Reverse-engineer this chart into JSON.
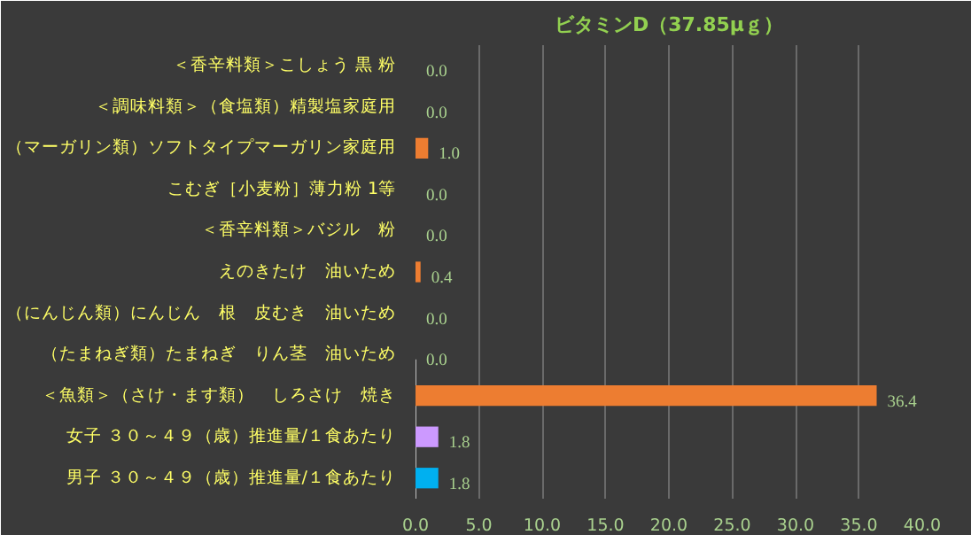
{
  "chart_data": {
    "type": "bar",
    "orientation": "horizontal",
    "title": "ビタミンD（37.85μｇ）",
    "categories": [
      "＜香辛料類＞こしょう 黒 粉",
      "＜調味料類＞（食塩類）精製塩家庭用",
      "（マーガリン類）ソフトタイプマーガリン家庭用",
      "こむぎ［小麦粉］薄力粉 1等",
      "＜香辛料類＞バジル　粉",
      "えのきたけ　油いため",
      "（にんじん類）にんじん　根　皮むき　油いため",
      "（たまねぎ類）たまねぎ　りん茎　油いため",
      "＜魚類＞（さけ・ます類）　しろさけ　焼き",
      "女子 ３０～４９（歳）推進量/１食あたり",
      "男子 ３０～４９（歳）推進量/１食あたり"
    ],
    "values": [
      0,
      0,
      1.0,
      0,
      0,
      0.4,
      0,
      0,
      36.4,
      1.8,
      1.8
    ],
    "colors": [
      "#ed7d31",
      "#ed7d31",
      "#ed7d31",
      "#ed7d31",
      "#ed7d31",
      "#ed7d31",
      "#ed7d31",
      "#ed7d31",
      "#ed7d31",
      "#cc99ff",
      "#00b0f0"
    ],
    "value_labels": [
      "0.0",
      "0.0",
      "1.0",
      "0.0",
      "0.0",
      "0.4",
      "0.0",
      "0.0",
      "36.4",
      "1.8",
      "1.8"
    ],
    "xlim": [
      0,
      40
    ],
    "xticks": [
      {
        "value": 0,
        "label": "0.0"
      },
      {
        "value": 5,
        "label": "5.0"
      },
      {
        "value": 10,
        "label": "10.0"
      },
      {
        "value": 15,
        "label": "15.0"
      },
      {
        "value": 20,
        "label": "20.0"
      },
      {
        "value": 25,
        "label": "25.0"
      },
      {
        "value": 30,
        "label": "30.0"
      },
      {
        "value": 35,
        "label": "35.0"
      },
      {
        "value": 40,
        "label": "40.0"
      }
    ],
    "grid": "x"
  }
}
